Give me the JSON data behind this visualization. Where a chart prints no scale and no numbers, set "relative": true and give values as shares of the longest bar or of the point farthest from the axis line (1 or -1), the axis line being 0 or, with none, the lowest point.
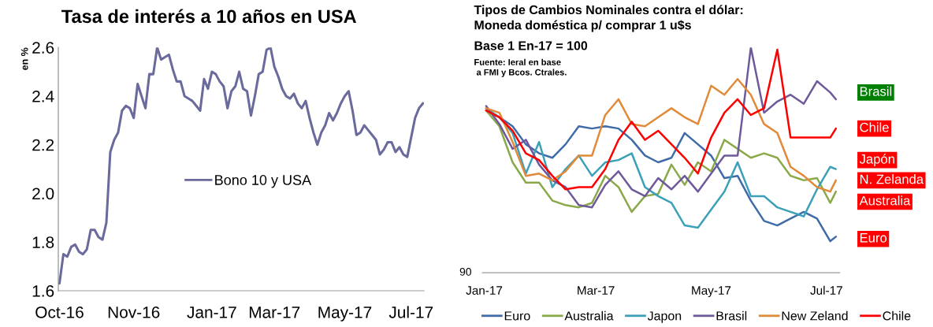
{
  "chart_data": [
    {
      "type": "line",
      "title": "Tasa de interés a 10 años en USA",
      "ylabel": "en %",
      "categories": [
        "Oct-16",
        null,
        null,
        null,
        null,
        null,
        null,
        null,
        null,
        null,
        null,
        null,
        null,
        null,
        null,
        null,
        null,
        null,
        null,
        "Nov-16",
        null,
        null,
        null,
        null,
        null,
        null,
        null,
        null,
        null,
        null,
        null,
        null,
        null,
        null,
        null,
        null,
        null,
        null,
        null,
        "Jan-17",
        null,
        null,
        null,
        null,
        null,
        null,
        null,
        null,
        null,
        null,
        null,
        null,
        null,
        null,
        null,
        "Mar-17",
        null,
        null,
        null,
        null,
        null,
        null,
        null,
        null,
        null,
        null,
        null,
        null,
        null,
        null,
        null,
        null,
        null,
        "May-17",
        null,
        null,
        null,
        null,
        null,
        null,
        null,
        null,
        null,
        null,
        null,
        null,
        null,
        null,
        null,
        null,
        "Jul-17",
        null,
        null,
        null
      ],
      "series": [
        {
          "name": "Bono 10 y USA",
          "color": "#6a6a9c",
          "values": [
            1.63,
            1.75,
            1.74,
            1.78,
            1.79,
            1.76,
            1.75,
            1.77,
            1.85,
            1.85,
            1.82,
            1.81,
            1.88,
            2.17,
            2.22,
            2.25,
            2.34,
            2.36,
            2.35,
            2.31,
            2.45,
            2.4,
            2.35,
            2.49,
            2.49,
            2.6,
            2.55,
            2.56,
            2.57,
            2.51,
            2.46,
            2.46,
            2.4,
            2.39,
            2.38,
            2.36,
            2.34,
            2.47,
            2.43,
            2.5,
            2.49,
            2.46,
            2.44,
            2.35,
            2.42,
            2.44,
            2.5,
            2.43,
            2.42,
            2.32,
            2.4,
            2.49,
            2.5,
            2.59,
            2.6,
            2.52,
            2.48,
            2.43,
            2.4,
            2.39,
            2.41,
            2.37,
            2.35,
            2.38,
            2.31,
            2.25,
            2.2,
            2.25,
            2.28,
            2.33,
            2.3,
            2.33,
            2.37,
            2.4,
            2.42,
            2.34,
            2.24,
            2.25,
            2.28,
            2.26,
            2.24,
            2.22,
            2.16,
            2.18,
            2.21,
            2.21,
            2.17,
            2.19,
            2.16,
            2.15,
            2.23,
            2.31,
            2.35,
            2.37
          ]
        }
      ],
      "ylim": [
        1.6,
        2.6
      ],
      "yticks": [
        1.6,
        1.8,
        {
          "value": 2.0,
          "label": "2.0"
        },
        2.2,
        2.4,
        2.6
      ],
      "grid": false,
      "legend": "center"
    },
    {
      "type": "line",
      "title": "Tipos de Cambios Nominales contra el dólar:\nMoneda doméstica p/ comprar 1 u$s",
      "subtitle": "Base 1 En-17 = 100",
      "relative": true,
      "annotations": [
        "Fuente: Ieral en base\n a FMI y Bcos. Ctrales.",
        "90",
        "Brasil",
        "Chile",
        "Japón",
        "N. Zelanda",
        "Australia",
        "Euro"
      ],
      "x": [
        "2017-01-02",
        "2017-01-09",
        "2017-01-16",
        "2017-01-23",
        "2017-01-30",
        "2017-02-06",
        "2017-02-13",
        "2017-02-20",
        "2017-02-27",
        "2017-03-06",
        "2017-03-13",
        "2017-03-20",
        "2017-03-27",
        "2017-04-03",
        "2017-04-10",
        "2017-04-17",
        "2017-04-24",
        "2017-05-01",
        "2017-05-08",
        "2017-05-15",
        "2017-05-22",
        "2017-05-29",
        "2017-06-05",
        "2017-06-12",
        "2017-06-19",
        "2017-06-26",
        "2017-07-03",
        "2017-07-06"
      ],
      "xlim": [
        "2016-12-31",
        "2017-07-08"
      ],
      "xticks": [
        {
          "value": "2017-01-01",
          "label": "Jan-17"
        },
        {
          "value": "2017-03-01",
          "label": "Mar-17"
        },
        {
          "value": "2017-05-01",
          "label": "May-17"
        },
        {
          "value": "2017-07-01",
          "label": "Jul-17"
        }
      ],
      "series": [
        {
          "name": "Euro",
          "color": "#3f6ba8",
          "values": [
            0.72,
            0.69,
            0.65,
            0.57,
            0.53,
            0.51,
            0.57,
            0.65,
            0.64,
            0.65,
            0.64,
            0.59,
            0.52,
            0.49,
            0.51,
            0.62,
            0.57,
            0.52,
            0.42,
            0.43,
            0.32,
            0.23,
            0.21,
            0.24,
            0.27,
            0.24,
            0.14,
            0.16
          ]
        },
        {
          "name": "Australia",
          "color": "#8aaa4a",
          "values": [
            0.72,
            0.65,
            0.49,
            0.4,
            0.4,
            0.32,
            0.3,
            0.29,
            0.31,
            0.43,
            0.38,
            0.27,
            0.34,
            0.35,
            0.48,
            0.39,
            0.49,
            0.45,
            0.59,
            0.55,
            0.51,
            0.53,
            0.51,
            0.43,
            0.41,
            0.42,
            0.31,
            0.36
          ]
        },
        {
          "name": "Japon",
          "color": "#3ba0b8",
          "values": [
            0.73,
            0.69,
            0.62,
            0.44,
            0.58,
            0.38,
            0.46,
            0.52,
            0.43,
            0.49,
            0.5,
            0.53,
            0.38,
            0.34,
            0.31,
            0.21,
            0.2,
            0.28,
            0.36,
            0.49,
            0.34,
            0.34,
            0.29,
            0.27,
            0.25,
            0.37,
            0.47,
            0.46
          ]
        },
        {
          "name": "Brasil",
          "color": "#6e5a9a",
          "values": [
            0.74,
            0.66,
            0.55,
            0.59,
            0.48,
            0.41,
            0.38,
            0.3,
            0.29,
            0.39,
            0.45,
            0.37,
            0.34,
            0.42,
            0.37,
            0.43,
            0.36,
            0.44,
            0.52,
            0.52,
            1.0,
            0.71,
            0.76,
            0.79,
            0.75,
            0.85,
            0.8,
            0.77
          ]
        },
        {
          "name": "New Zeland",
          "color": "#e08a3a",
          "values": [
            0.73,
            0.71,
            0.58,
            0.43,
            0.44,
            0.41,
            0.45,
            0.52,
            0.52,
            0.7,
            0.77,
            0.66,
            0.65,
            0.69,
            0.73,
            0.69,
            0.66,
            0.83,
            0.79,
            0.86,
            0.79,
            0.66,
            0.62,
            0.47,
            0.43,
            0.38,
            0.36,
            0.41
          ]
        },
        {
          "name": "Chile",
          "color": "#ff0000",
          "values": [
            0.72,
            0.69,
            0.63,
            0.53,
            0.5,
            0.43,
            0.37,
            0.38,
            0.38,
            0.46,
            0.59,
            0.67,
            0.59,
            0.63,
            0.57,
            0.51,
            0.44,
            0.6,
            0.71,
            0.77,
            0.7,
            0.73,
            0.99,
            0.6,
            0.6,
            0.6,
            0.6,
            0.64
          ]
        }
      ],
      "grid": false,
      "legend": "bottom"
    }
  ]
}
